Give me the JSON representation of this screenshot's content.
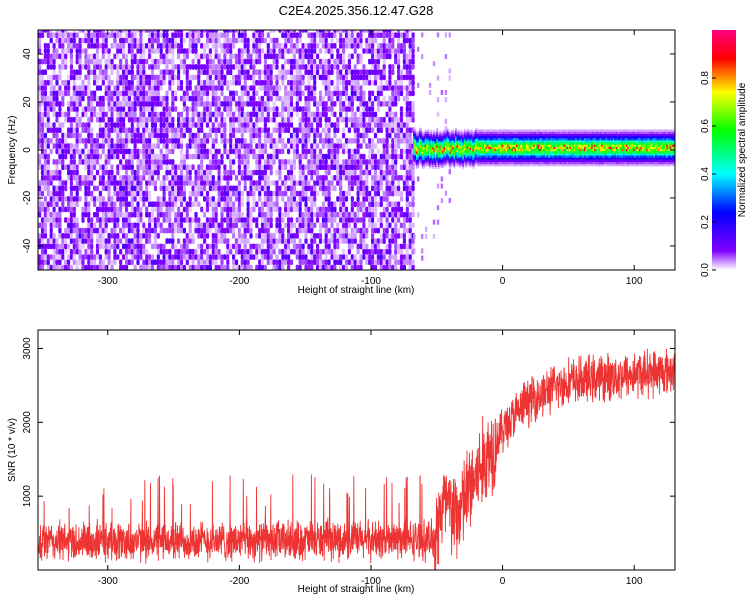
{
  "title": "C2E4.2025.356.12.47.G28",
  "chart_data": [
    {
      "type": "heatmap",
      "name": "spectrogram",
      "xlabel": "Height of straight line (km)",
      "ylabel": "Frequency (Hz)",
      "xlim": [
        -353,
        131
      ],
      "ylim": [
        -50,
        50
      ],
      "xticks": [
        -300,
        -200,
        -100,
        0,
        100
      ],
      "yticks": [
        -40,
        -20,
        0,
        20,
        40
      ],
      "noise_region_x": [
        -353,
        -68
      ],
      "signal_region_x": [
        -68,
        131
      ],
      "signal_center_freq": 0.5,
      "colorbar": {
        "label": "Normalized spectral amplitude",
        "range": [
          0.0,
          1.0
        ],
        "ticks": [
          0.0,
          0.2,
          0.4,
          0.6,
          0.8
        ],
        "colors": [
          "#ffffff",
          "#8000ff",
          "#0000ff",
          "#00ffff",
          "#00ff00",
          "#ffff00",
          "#ff0000",
          "#ff0080"
        ]
      }
    },
    {
      "type": "line",
      "name": "snr",
      "xlabel": "Height of straight line (km)",
      "ylabel": "SNR (10 * v/v)",
      "xlim": [
        -353,
        131
      ],
      "ylim": [
        0,
        3250
      ],
      "xticks": [
        -300,
        -200,
        -100,
        0,
        100
      ],
      "yticks": [
        1000,
        2000,
        3000
      ],
      "color": "#ee3333",
      "trend": [
        {
          "x": -353,
          "y": 380
        },
        {
          "x": -250,
          "y": 390
        },
        {
          "x": -150,
          "y": 400
        },
        {
          "x": -52,
          "y": 410
        },
        {
          "x": -45,
          "y": 900
        },
        {
          "x": -35,
          "y": 700
        },
        {
          "x": -25,
          "y": 1100
        },
        {
          "x": -10,
          "y": 1600
        },
        {
          "x": 0,
          "y": 1900
        },
        {
          "x": 20,
          "y": 2300
        },
        {
          "x": 50,
          "y": 2550
        },
        {
          "x": 100,
          "y": 2650
        },
        {
          "x": 131,
          "y": 2700
        }
      ]
    }
  ]
}
